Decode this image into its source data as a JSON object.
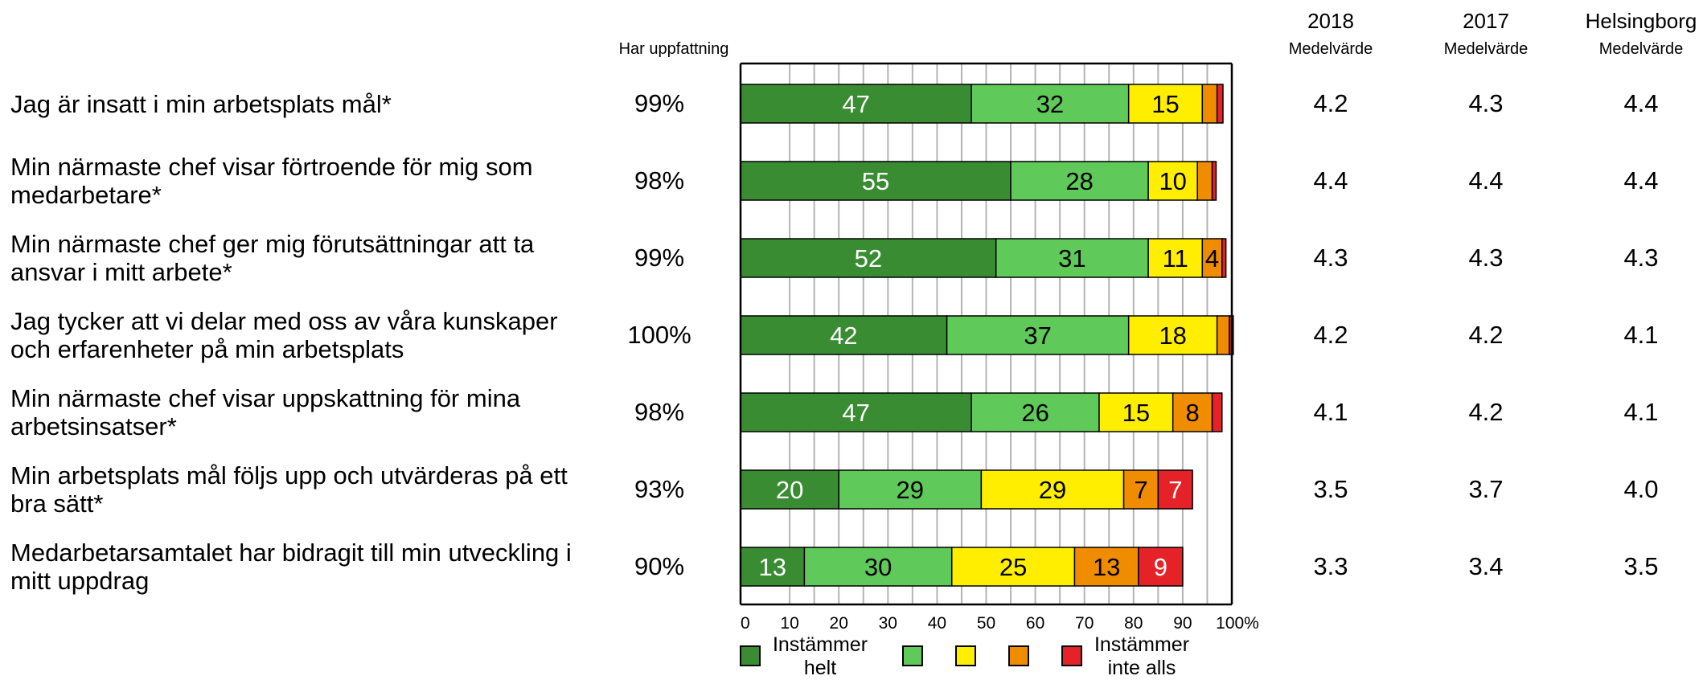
{
  "header": {
    "har_uppfattning": "Har uppfattning",
    "columns": [
      {
        "year": "2018",
        "sub": "Medelvärde"
      },
      {
        "year": "2017",
        "sub": "Medelvärde"
      },
      {
        "year": "Helsingborg",
        "sub": "Medelvärde"
      }
    ]
  },
  "rows": [
    {
      "question": "Jag är insatt i min arbetsplats mål*",
      "har": "99%",
      "m2018": "4.2",
      "m2017": "4.3",
      "hbg": "4.4"
    },
    {
      "question": "Min närmaste chef visar förtroende för mig som medarbetare*",
      "har": "98%",
      "m2018": "4.4",
      "m2017": "4.4",
      "hbg": "4.4"
    },
    {
      "question": "Min närmaste chef ger mig förutsättningar att ta ansvar i mitt arbete*",
      "har": "99%",
      "m2018": "4.3",
      "m2017": "4.3",
      "hbg": "4.3"
    },
    {
      "question": "Jag tycker att vi delar med oss av våra kunskaper och erfarenheter på min arbetsplats",
      "har": "100%",
      "m2018": "4.2",
      "m2017": "4.2",
      "hbg": "4.1"
    },
    {
      "question": "Min närmaste chef visar uppskattning för mina arbetsinsatser*",
      "har": "98%",
      "m2018": "4.1",
      "m2017": "4.2",
      "hbg": "4.1"
    },
    {
      "question": "Min arbetsplats mål följs upp och utvärderas på ett bra sätt*",
      "har": "93%",
      "m2018": "3.5",
      "m2017": "3.7",
      "hbg": "4.0"
    },
    {
      "question": "Medarbetarsamtalet har bidragit till min utveckling i mitt uppdrag",
      "har": "90%",
      "m2018": "3.3",
      "m2017": "3.4",
      "hbg": "3.5"
    }
  ],
  "chart_data": {
    "type": "bar",
    "orientation": "horizontal",
    "stacked": true,
    "xlim": [
      0,
      100
    ],
    "xticks": [
      "0",
      "10",
      "20",
      "30",
      "40",
      "50",
      "60",
      "70",
      "80",
      "90",
      "100%"
    ],
    "grid": true,
    "legend_position": "bottom",
    "series": [
      {
        "name": "Instämmer helt",
        "color": "#3a8c32",
        "label_color": "#ffffff",
        "values": [
          47,
          55,
          52,
          42,
          47,
          20,
          13
        ]
      },
      {
        "name": "",
        "color": "#5fc95a",
        "label_color": "#000000",
        "values": [
          32,
          28,
          31,
          37,
          26,
          29,
          30
        ]
      },
      {
        "name": "",
        "color": "#ffee00",
        "label_color": "#000000",
        "values": [
          15,
          10,
          11,
          18,
          15,
          29,
          25
        ]
      },
      {
        "name": "",
        "color": "#f08c00",
        "label_color": "#000000",
        "values": [
          3,
          3,
          4,
          2.5,
          8,
          7,
          13
        ]
      },
      {
        "name": "Instämmer inte alls",
        "color": "#e62229",
        "label_color": "#ffffff",
        "values": [
          1.2,
          0.8,
          0.8,
          0.8,
          2,
          7,
          9
        ]
      }
    ],
    "shown_labels": [
      [
        "47",
        "32",
        "15",
        "",
        ""
      ],
      [
        "55",
        "28",
        "10",
        "",
        ""
      ],
      [
        "52",
        "31",
        "11",
        "4",
        ""
      ],
      [
        "42",
        "37",
        "18",
        "",
        ""
      ],
      [
        "47",
        "26",
        "15",
        "8",
        ""
      ],
      [
        "20",
        "29",
        "29",
        "7",
        "7"
      ],
      [
        "13",
        "30",
        "25",
        "13",
        "9"
      ]
    ]
  }
}
